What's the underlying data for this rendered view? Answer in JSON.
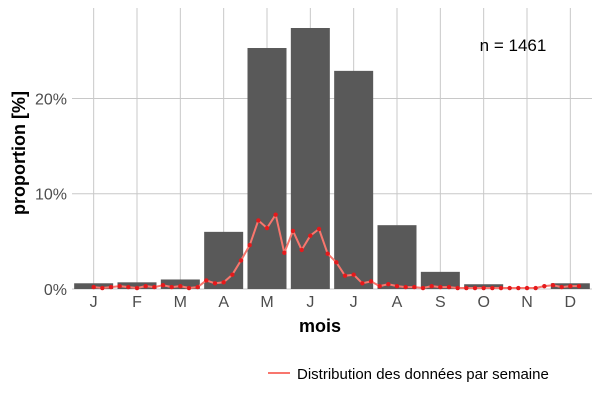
{
  "chart_data": {
    "type": "bar",
    "categories": [
      "J",
      "F",
      "M",
      "A",
      "M",
      "J",
      "J",
      "A",
      "S",
      "O",
      "N",
      "D"
    ],
    "values": [
      0.6,
      0.7,
      1.0,
      6.0,
      25.3,
      27.4,
      22.9,
      6.7,
      1.8,
      0.5,
      0,
      0.6
    ],
    "xlabel": "mois",
    "ylabel": "proportion [%]",
    "ylim": [
      0,
      29.5
    ],
    "yticks": [
      0,
      10,
      20
    ],
    "ytick_labels": [
      "0%",
      "10%",
      "20%"
    ],
    "annotation": "n = 1461",
    "grid": true,
    "legend_position": "bottom-right",
    "bar_color": "#595959",
    "line_series": {
      "name": "Distribution des données par semaine",
      "color": "#f8766d",
      "point_color": "#e41a1c",
      "x": [
        0.5,
        0.7,
        0.9,
        1.1,
        1.3,
        1.5,
        1.7,
        1.9,
        2.1,
        2.3,
        2.5,
        2.7,
        2.9,
        3.1,
        3.3,
        3.5,
        3.7,
        3.9,
        4.1,
        4.3,
        4.5,
        4.7,
        4.9,
        5.1,
        5.3,
        5.5,
        5.7,
        5.9,
        6.1,
        6.3,
        6.5,
        6.7,
        6.9,
        7.1,
        7.3,
        7.5,
        7.7,
        7.9,
        8.1,
        8.3,
        8.5,
        8.7,
        8.9,
        9.1,
        9.3,
        9.5,
        9.7,
        9.9,
        10.1,
        10.3,
        10.5,
        10.7,
        10.9,
        11.1,
        11.3,
        11.5,
        11.7
      ],
      "y": [
        0.2,
        0.1,
        0.2,
        0.3,
        0.2,
        0.1,
        0.3,
        0.2,
        0.4,
        0.2,
        0.3,
        0.1,
        0.2,
        0.9,
        0.6,
        0.7,
        1.5,
        3.0,
        4.6,
        7.2,
        6.4,
        7.8,
        3.8,
        6.1,
        4.1,
        5.6,
        6.3,
        3.7,
        2.8,
        1.4,
        1.5,
        0.6,
        0.8,
        0.3,
        0.5,
        0.3,
        0.2,
        0.2,
        0.1,
        0.3,
        0.2,
        0.2,
        0.1,
        0.1,
        0.1,
        0.1,
        0.1,
        0.1,
        0.1,
        0.1,
        0.1,
        0.1,
        0.3,
        0.4,
        0.2,
        0.3,
        0.3
      ]
    }
  }
}
